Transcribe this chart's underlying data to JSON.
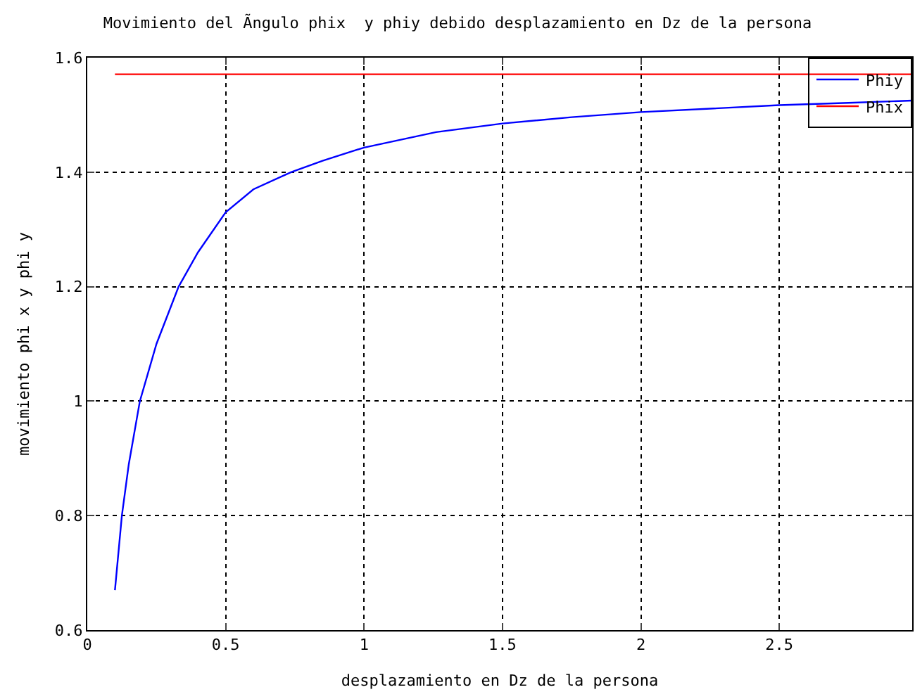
{
  "chart_data": {
    "type": "line",
    "title": "Movimiento del Ãngulo phix  y phiy debido desplazamiento en Dz de la persona",
    "xlabel": "desplazamiento en Dz de la persona",
    "ylabel": "movimiento phi x y phi y",
    "xlim": [
      0,
      2.98
    ],
    "ylim": [
      0.6,
      1.6
    ],
    "xticks": [
      0,
      0.5,
      1,
      1.5,
      2,
      2.5
    ],
    "yticks": [
      0.6,
      0.8,
      1,
      1.2,
      1.4,
      1.6
    ],
    "grid": true,
    "legend": "top right",
    "marker": "none",
    "line_style": "solid",
    "series": [
      {
        "name": "Phiy",
        "color": "#0000ff",
        "x": [
          0.1,
          0.125,
          0.15,
          0.19,
          0.25,
          0.33,
          0.4,
          0.5,
          0.6,
          0.736,
          0.85,
          1,
          1.26,
          1.5,
          1.75,
          2,
          2.25,
          2.5,
          2.75,
          2.98
        ],
        "values": [
          0.67,
          0.8,
          0.89,
          1.0,
          1.1,
          1.2,
          1.26,
          1.33,
          1.37,
          1.4,
          1.42,
          1.443,
          1.47,
          1.485,
          1.496,
          1.505,
          1.511,
          1.517,
          1.521,
          1.525
        ]
      },
      {
        "name": "Phix",
        "color": "#ff0000",
        "x": [
          0.1,
          2.98
        ],
        "values": [
          1.571,
          1.571
        ]
      }
    ]
  }
}
